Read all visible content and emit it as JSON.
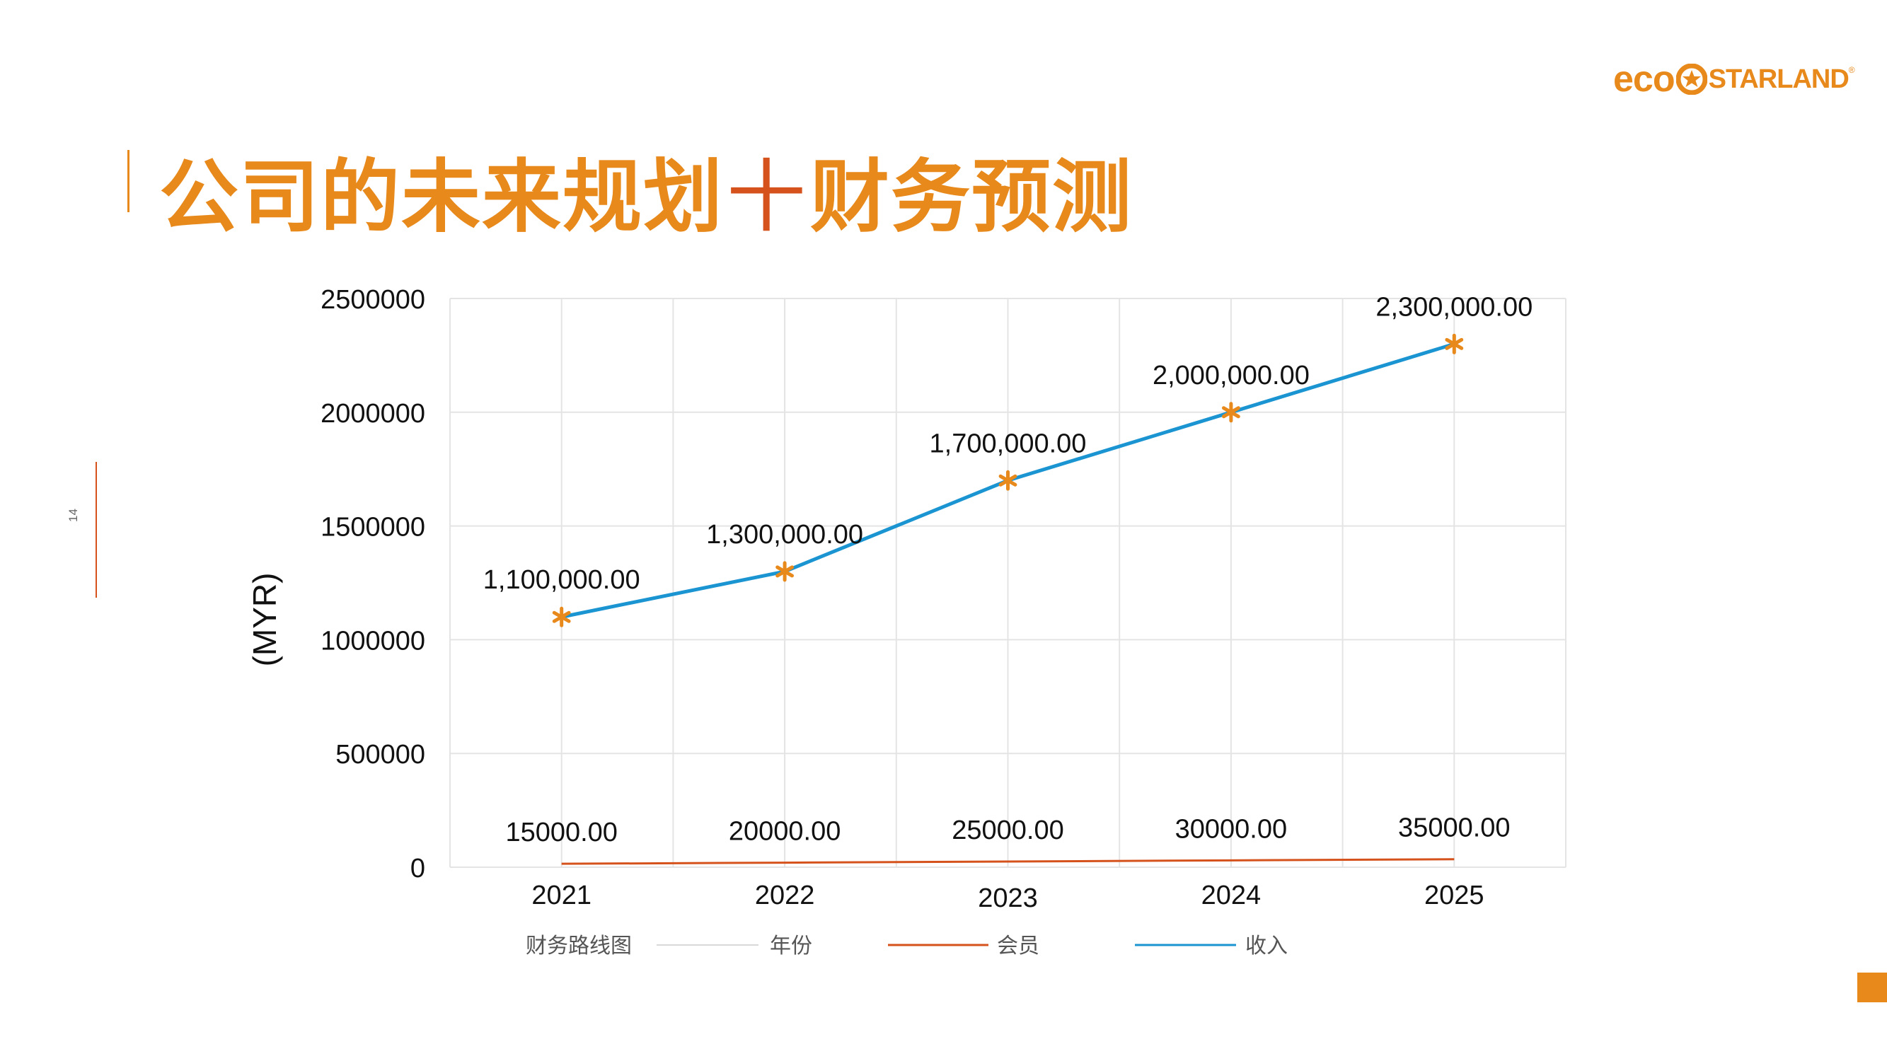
{
  "page": {
    "title_left": "公司的未来规划",
    "title_plus": "十",
    "title_right": "财务预测",
    "page_number": "14",
    "logo": {
      "eco": "eco",
      "brand": "STARLAND",
      "reg": "®"
    }
  },
  "colors": {
    "accent": "#e8891c",
    "accent_dark": "#d5521c",
    "income_line": "#1b94d2",
    "member_line": "#d5521c",
    "marker": "#e8891c"
  },
  "chart_data": {
    "type": "line",
    "ylabel": "(MYR)",
    "ylim": [
      0,
      2500000
    ],
    "yticks": [
      "0",
      "500000",
      "1000000",
      "1500000",
      "2000000",
      "2500000"
    ],
    "categories": [
      "2021",
      "2022",
      "2023",
      "2024",
      "2025"
    ],
    "grid": true,
    "legend_position": "bottom",
    "legend": [
      "财务路线图",
      "年份",
      "会员",
      "收入"
    ],
    "series": [
      {
        "name": "收入",
        "values": [
          1100000,
          1300000,
          1700000,
          2000000,
          2300000
        ],
        "labels": [
          "1,100,000.00",
          "1,300,000.00",
          "1,700,000.00",
          "2,000,000.00",
          "2,300,000.00"
        ],
        "marker": "asterisk"
      },
      {
        "name": "会员",
        "values": [
          15000,
          20000,
          25000,
          30000,
          35000
        ],
        "labels": [
          "15000.00",
          "20000.00",
          "25000.00",
          "30000.00",
          "35000.00"
        ]
      }
    ]
  }
}
